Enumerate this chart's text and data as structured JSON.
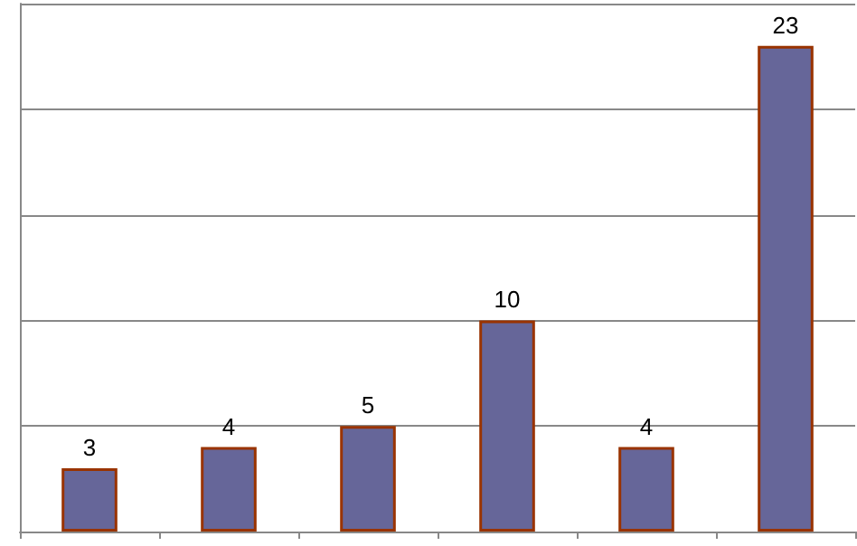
{
  "chart_data": {
    "type": "bar",
    "categories": [
      null,
      null,
      null,
      null,
      null,
      null
    ],
    "values": [
      3,
      4,
      5,
      10,
      4,
      23
    ],
    "color": "#666699",
    "data_labels": true,
    "ylim": [
      0,
      25
    ],
    "yticks": [
      {
        "value": 0,
        "label": null
      },
      {
        "value": 5,
        "label": null
      },
      {
        "value": 10,
        "label": null
      },
      {
        "value": 15,
        "label": null
      },
      {
        "value": 20,
        "label": null
      },
      {
        "value": 25,
        "label": null
      }
    ],
    "grid": "y"
  }
}
